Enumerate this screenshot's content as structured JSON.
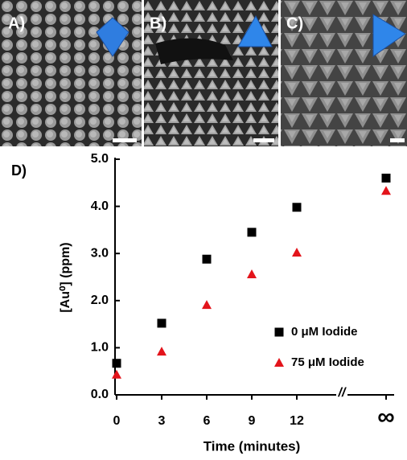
{
  "panels": [
    {
      "label": "A)"
    },
    {
      "label": "B)"
    },
    {
      "label": "C)"
    }
  ],
  "chart_data": {
    "type": "scatter",
    "panel_label": "D)",
    "xlabel": "Time (minutes)",
    "ylabel": "[Au⁰] (ppm)",
    "categories": [
      "0",
      "3",
      "6",
      "9",
      "12",
      "∞"
    ],
    "axis_break_label": "//",
    "ylim": [
      0,
      5
    ],
    "yticks": [
      {
        "value": 0,
        "label": "0.0"
      },
      {
        "value": 1,
        "label": "1.0"
      },
      {
        "value": 2,
        "label": "2.0"
      },
      {
        "value": 3,
        "label": "3.0"
      },
      {
        "value": 4,
        "label": "4.0"
      },
      {
        "value": 5,
        "label": "5.0"
      }
    ],
    "legend": "right",
    "series": [
      {
        "name": "0 μM Iodide",
        "color": "#000000",
        "marker": "square",
        "values": [
          0.67,
          1.52,
          2.88,
          3.45,
          3.98,
          4.6
        ]
      },
      {
        "name": "75 μM Iodide",
        "color": "#e3141b",
        "marker": "triangle",
        "values": [
          0.43,
          0.92,
          1.91,
          2.56,
          3.02,
          4.33
        ]
      }
    ]
  }
}
